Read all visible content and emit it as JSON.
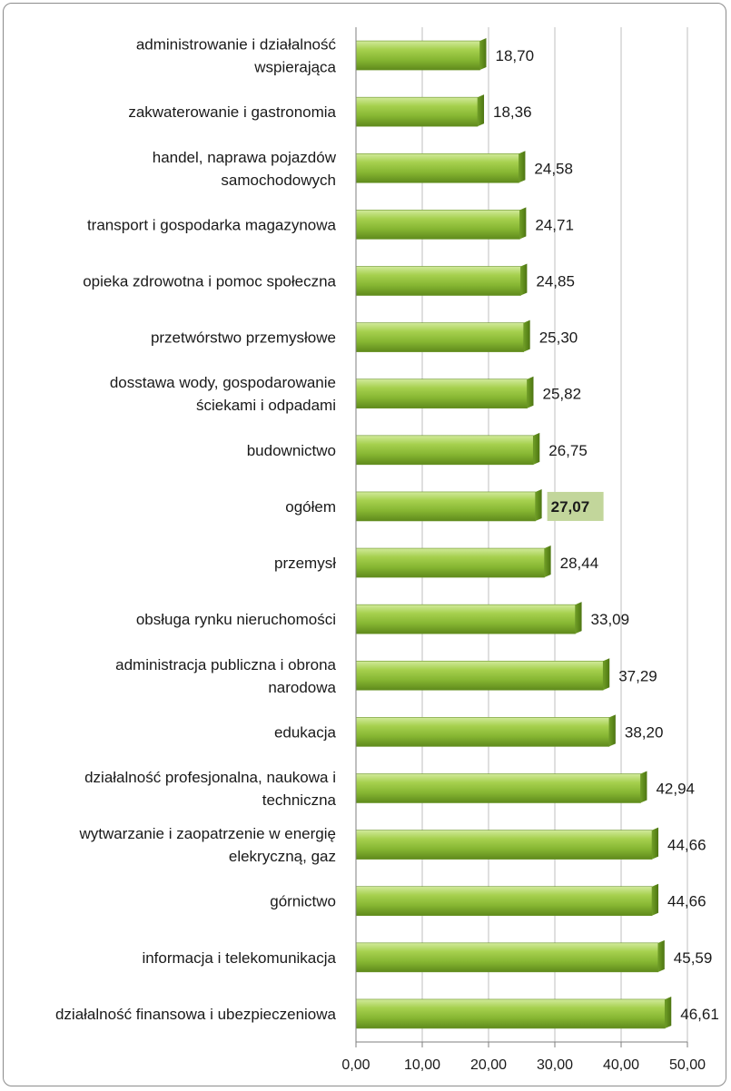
{
  "chart_data": {
    "type": "bar",
    "orientation": "horizontal",
    "title": "",
    "xlabel": "",
    "ylabel": "",
    "xlim": [
      0,
      50
    ],
    "x_ticks": [
      "0,00",
      "10,00",
      "20,00",
      "30,00",
      "40,00",
      "50,00"
    ],
    "x_tick_values": [
      0,
      10,
      20,
      30,
      40,
      50
    ],
    "grid": true,
    "bar_color": "#8fbf3a",
    "highlight_color": "#c2d69b",
    "highlight_category": "ogółem",
    "categories": [
      "administrowanie i działalność wspierająca",
      "zakwaterowanie i gastronomia",
      "handel, naprawa pojazdów samochodowych",
      "transport i gospodarka magazynowa",
      "opieka zdrowotna i pomoc społeczna",
      "przetwórstwo przemysłowe",
      "dosstawa wody, gospodarowanie ściekami i odpadami",
      "budownictwo",
      "ogółem",
      "przemysł",
      "obsługa rynku nieruchomości",
      "administracja publiczna i obrona narodowa",
      "edukacja",
      "działalność profesjonalna, naukowa i techniczna",
      "wytwarzanie i zaopatrzenie w energię elekryczną, gaz",
      "górnictwo",
      "informacja i telekomunikacja",
      "działalność finansowa i ubezpieczeniowa"
    ],
    "category_lines": [
      [
        "administrowanie i działalność",
        "wspierająca"
      ],
      [
        "zakwaterowanie i gastronomia"
      ],
      [
        "handel, naprawa pojazdów",
        "samochodowych"
      ],
      [
        "transport i gospodarka magazynowa"
      ],
      [
        "opieka zdrowotna i pomoc społeczna"
      ],
      [
        "przetwórstwo przemysłowe"
      ],
      [
        "dosstawa wody, gospodarowanie",
        "ściekami i odpadami"
      ],
      [
        "budownictwo"
      ],
      [
        "ogółem"
      ],
      [
        "przemysł"
      ],
      [
        "obsługa rynku nieruchomości"
      ],
      [
        "administracja publiczna i obrona",
        "narodowa"
      ],
      [
        "edukacja"
      ],
      [
        "działalność profesjonalna, naukowa i",
        "techniczna"
      ],
      [
        "wytwarzanie i zaopatrzenie w energię",
        "elekryczną, gaz"
      ],
      [
        "górnictwo"
      ],
      [
        "informacja i telekomunikacja"
      ],
      [
        "działalność finansowa i ubezpieczeniowa"
      ]
    ],
    "values": [
      18.7,
      18.36,
      24.58,
      24.71,
      24.85,
      25.3,
      25.82,
      26.75,
      27.07,
      28.44,
      33.09,
      37.29,
      38.2,
      42.94,
      44.66,
      44.66,
      45.59,
      46.61
    ],
    "value_labels": [
      "18,70",
      "18,36",
      "24,58",
      "24,71",
      "24,85",
      "25,30",
      "25,82",
      "26,75",
      "27,07",
      "28,44",
      "33,09",
      "37,29",
      "38,20",
      "42,94",
      "44,66",
      "44,66",
      "45,59",
      "46,61"
    ]
  }
}
